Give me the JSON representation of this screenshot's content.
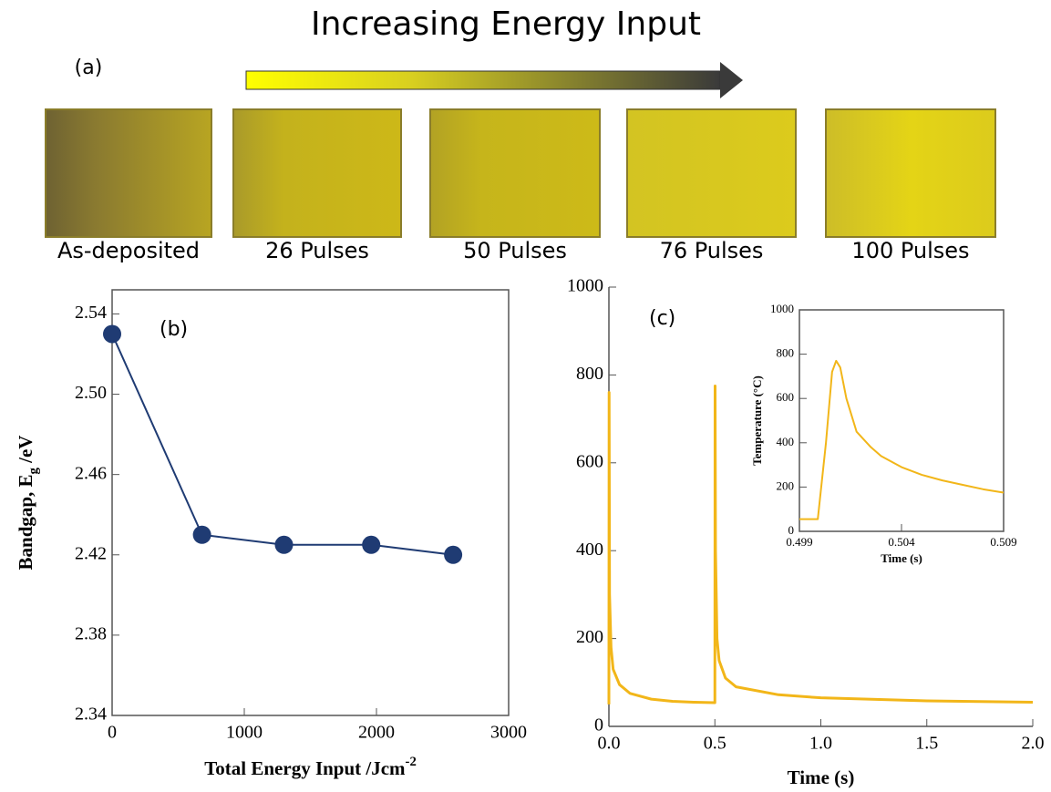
{
  "title": "Increasing Energy Input",
  "panel_a": {
    "label": "(a)",
    "samples": [
      "As-deposited",
      "26 Pulses",
      "50 Pulses",
      "76 Pulses",
      "100 Pulses"
    ]
  },
  "chart_data": [
    {
      "type": "line",
      "panel_label": "(b)",
      "xlabel": [
        "Total Energy Input /Jcm",
        "-2"
      ],
      "ylabel": [
        "Bandgap, E",
        "g",
        " /eV"
      ],
      "x": [
        0,
        680,
        1300,
        1960,
        2580
      ],
      "values": [
        2.53,
        2.43,
        2.425,
        2.425,
        2.42
      ],
      "color": "#1f3b73",
      "markers": true,
      "xlim": [
        0,
        3000
      ],
      "xticks": [
        0,
        1000,
        2000,
        3000
      ],
      "ylim": [
        2.34,
        2.552
      ],
      "yticks": [
        2.34,
        2.38,
        2.42,
        2.46,
        {
          "value": 2.5,
          "label": "2.50"
        },
        2.54
      ]
    },
    {
      "type": "line",
      "panel_label": "(c)",
      "xlabel": [
        "Time (s)"
      ],
      "x": [
        0,
        0.001,
        0.003,
        0.01,
        0.02,
        0.05,
        0.1,
        0.2,
        0.3,
        0.4,
        0.499,
        0.5,
        0.501,
        0.503,
        0.51,
        0.52,
        0.55,
        0.6,
        0.8,
        1.0,
        1.5,
        2.0
      ],
      "values": [
        50,
        760,
        300,
        180,
        130,
        95,
        75,
        62,
        57,
        55,
        54,
        54,
        775,
        400,
        200,
        150,
        110,
        90,
        72,
        65,
        58,
        55
      ],
      "color": "#f2b619",
      "markers": false,
      "xlim": [
        0,
        2
      ],
      "xticks": [
        {
          "value": 0,
          "label": "0.0"
        },
        0.5,
        {
          "value": 1,
          "label": "1.0"
        },
        1.5,
        {
          "value": 2,
          "label": "2.0"
        }
      ],
      "ylim": [
        0,
        1000
      ],
      "yticks": [
        0,
        200,
        400,
        600,
        800,
        1000
      ]
    },
    {
      "type": "line",
      "xlabel": [
        "Time (s)"
      ],
      "ylabel": [
        "Temperature (°C)"
      ],
      "x": [
        0.499,
        0.4999,
        0.5003,
        0.5006,
        0.5008,
        0.501,
        0.5013,
        0.5018,
        0.5025,
        0.503,
        0.504,
        0.505,
        0.506,
        0.507,
        0.508,
        0.509
      ],
      "values": [
        55,
        55,
        400,
        720,
        770,
        740,
        600,
        450,
        380,
        340,
        290,
        255,
        230,
        210,
        190,
        175
      ],
      "color": "#f2b619",
      "markers": false,
      "xlim": [
        0.499,
        0.509
      ],
      "xticks": [
        0.499,
        0.504,
        0.509
      ],
      "ylim": [
        0,
        1000
      ],
      "yticks": [
        0,
        200,
        400,
        600,
        800,
        1000
      ]
    }
  ]
}
